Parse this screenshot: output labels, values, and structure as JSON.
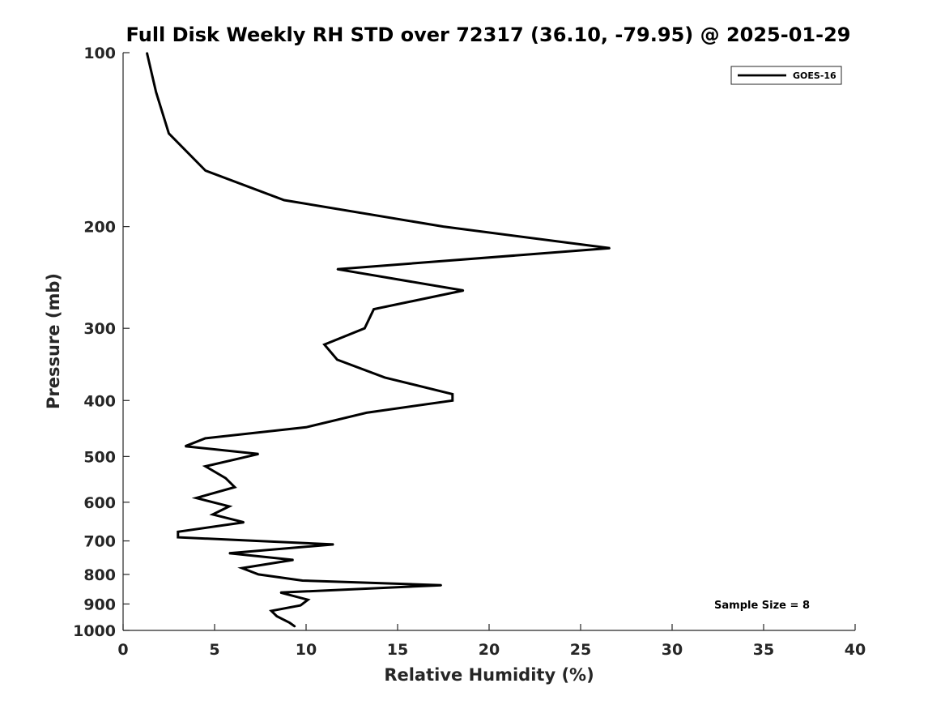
{
  "chart_data": {
    "type": "line",
    "title": "Full Disk Weekly RH STD over 72317 (36.10, -79.95) @ 2025-01-29",
    "xlabel": "Relative Humidity (%)",
    "ylabel": "Pressure (mb)",
    "xlim": [
      0,
      40
    ],
    "ylim": [
      100,
      1000
    ],
    "y_scale": "log",
    "y_reversed": true,
    "x_ticks": [
      0,
      5,
      10,
      15,
      20,
      25,
      30,
      35,
      40
    ],
    "x_tick_labels": [
      "0",
      "5",
      "10",
      "15",
      "20",
      "25",
      "30",
      "35",
      "40"
    ],
    "y_ticks": [
      100,
      200,
      300,
      400,
      500,
      600,
      700,
      800,
      900,
      1000
    ],
    "y_tick_labels": [
      "100",
      "200",
      "300",
      "400",
      "500",
      "600",
      "700",
      "800",
      "900",
      "1000"
    ],
    "grid": false,
    "legend_position": "top-right",
    "annotation": "Sample Size = 8",
    "series": [
      {
        "name": "GOES-16",
        "color": "#000000",
        "points": [
          [
            1.3,
            100
          ],
          [
            1.8,
            117
          ],
          [
            2.5,
            138
          ],
          [
            4.5,
            160
          ],
          [
            8.8,
            180
          ],
          [
            17.5,
            200
          ],
          [
            26.6,
            218
          ],
          [
            11.7,
            237
          ],
          [
            18.6,
            258
          ],
          [
            13.7,
            278
          ],
          [
            13.2,
            300
          ],
          [
            11.0,
            320
          ],
          [
            11.7,
            340
          ],
          [
            14.3,
            365
          ],
          [
            18.0,
            390
          ],
          [
            18.0,
            400
          ],
          [
            13.3,
            420
          ],
          [
            10.0,
            445
          ],
          [
            4.5,
            465
          ],
          [
            3.4,
            480
          ],
          [
            7.4,
            495
          ],
          [
            4.5,
            520
          ],
          [
            5.6,
            545
          ],
          [
            6.1,
            565
          ],
          [
            4.0,
            590
          ],
          [
            5.8,
            610
          ],
          [
            4.9,
            630
          ],
          [
            6.6,
            650
          ],
          [
            3.0,
            675
          ],
          [
            3.0,
            690
          ],
          [
            11.5,
            710
          ],
          [
            5.8,
            735
          ],
          [
            9.3,
            755
          ],
          [
            6.5,
            780
          ],
          [
            7.4,
            800
          ],
          [
            9.8,
            820
          ],
          [
            17.4,
            835
          ],
          [
            8.6,
            860
          ],
          [
            10.1,
            885
          ],
          [
            9.7,
            905
          ],
          [
            8.1,
            925
          ],
          [
            8.4,
            945
          ],
          [
            9.1,
            970
          ],
          [
            9.4,
            985
          ]
        ]
      }
    ]
  }
}
